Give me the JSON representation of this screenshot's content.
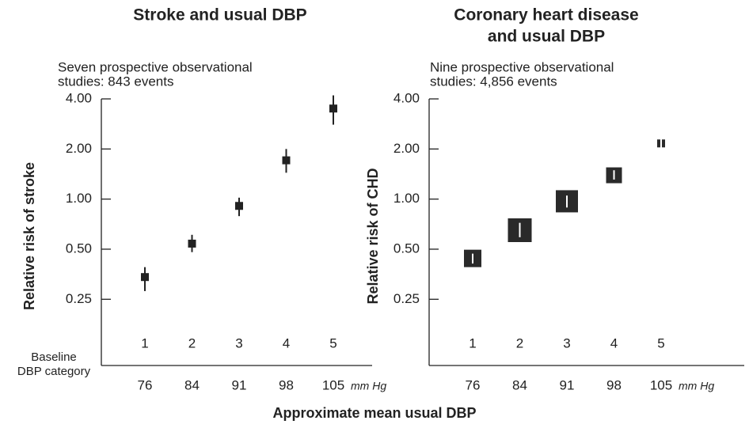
{
  "xlabel": "Approximate mean usual DBP",
  "chart_data": [
    {
      "type": "scatter",
      "title": [
        "Stroke and usual DBP"
      ],
      "subtitle": [
        "Seven prospective observational",
        "studies: 843 events"
      ],
      "ylabel": "Relative risk of stroke",
      "categories": [
        "1",
        "2",
        "3",
        "4",
        "5"
      ],
      "category_row_label": [
        "Baseline",
        "DBP category"
      ],
      "category_values": [
        76,
        84,
        91,
        98,
        105
      ],
      "x_unit": "mm Hg",
      "values": [
        0.34,
        0.54,
        0.91,
        1.71,
        3.5
      ],
      "lower": [
        0.28,
        0.48,
        0.79,
        1.44,
        2.8
      ],
      "upper": [
        0.39,
        0.61,
        1.02,
        2.0,
        4.2
      ],
      "weights": [
        10,
        10,
        10,
        10,
        10
      ],
      "color": "#222222",
      "ci_color": "#222222",
      "log_scale": true,
      "ylim": [
        0.1,
        4
      ],
      "yticks": [
        {
          "value": 4,
          "label": "4.00"
        },
        {
          "value": 2,
          "label": "2.00"
        },
        {
          "value": 1,
          "label": "1.00"
        },
        {
          "value": 0.5,
          "label": "0.50"
        },
        {
          "value": 0.25,
          "label": "0.25"
        }
      ]
    },
    {
      "type": "scatter",
      "title": [
        "Coronary heart disease",
        "and usual DBP"
      ],
      "subtitle": [
        "Nine prospective observational",
        "studies: 4,856 events"
      ],
      "ylabel": "Relative risk of CHD",
      "categories": [
        "1",
        "2",
        "3",
        "4",
        "5"
      ],
      "category_values": [
        76,
        84,
        91,
        98,
        105
      ],
      "x_unit": "mm Hg",
      "values": [
        0.44,
        0.65,
        0.97,
        1.39,
        2.16
      ],
      "lower": [
        0.41,
        0.59,
        0.89,
        1.31,
        1.95
      ],
      "upper": [
        0.47,
        0.72,
        1.05,
        1.49,
        2.35
      ],
      "weights": [
        22,
        30,
        28,
        20,
        10
      ],
      "color": "#2a2a2a",
      "ci_color": "#ffffff",
      "log_scale": true,
      "ylim": [
        0.1,
        4
      ],
      "yticks": [
        {
          "value": 4,
          "label": "4.00"
        },
        {
          "value": 2,
          "label": "2.00"
        },
        {
          "value": 1,
          "label": "1.00"
        },
        {
          "value": 0.5,
          "label": "0.50"
        },
        {
          "value": 0.25,
          "label": "0.25"
        }
      ]
    }
  ]
}
